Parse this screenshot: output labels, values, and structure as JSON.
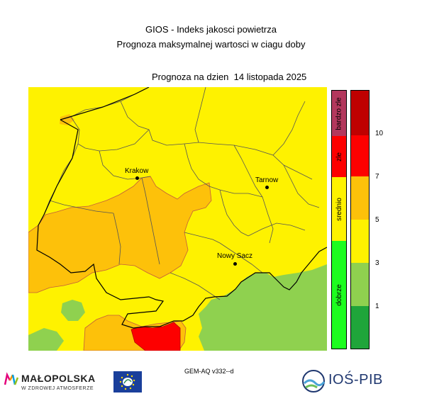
{
  "header": {
    "title": "GIOS - Indeks jakosci powietrza",
    "subtitle": "Prognoza maksymalnej wartosci w ciagu doby",
    "date_line": "Prognoza na dzien  14 listopada 2025"
  },
  "map": {
    "cities": [
      {
        "name": "Krakow"
      },
      {
        "name": "Tarnow"
      },
      {
        "name": "Nowy Sacz"
      }
    ],
    "colors": {
      "bardzo_dobry": "#1fa53a",
      "dobry": "#8fd14f",
      "umiarkowany": "#fef200",
      "dostateczny": "#fdc10a",
      "zly": "#fd0000",
      "bardzo_zly": "#b30000",
      "gmina_border": "#555555",
      "voivodeship_border": "#000000",
      "zone_border": "#c35c3d"
    }
  },
  "legend": {
    "categories": [
      {
        "label": "bardzo zle",
        "color": "#b3385d"
      },
      {
        "label": "zle",
        "color": "#fd0000"
      },
      {
        "label": "srednio",
        "color": "#fef200"
      },
      {
        "label": "dobrze",
        "color": "#1dfd1f"
      }
    ],
    "scale": [
      {
        "color": "#bf0000"
      },
      {
        "color": "#fd0000"
      },
      {
        "color": "#fdc10a"
      },
      {
        "color": "#fef200"
      },
      {
        "color": "#8fd14f"
      },
      {
        "color": "#1fa53a"
      }
    ],
    "ticks": [
      "10",
      "7",
      "5",
      "3",
      "1"
    ]
  },
  "footer": {
    "model": "GEM-AQ v332--d",
    "logo_malopolska_name": "MAŁOPOLSKA",
    "logo_malopolska_sub": "W ZDROWEJ ATMOSFERZE",
    "logo_ios": "IOŚ-PIB"
  }
}
